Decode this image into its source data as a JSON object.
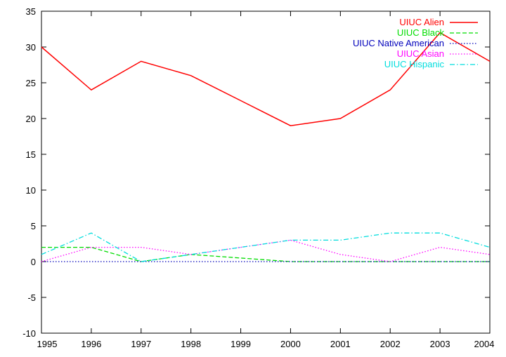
{
  "chart_data": {
    "type": "line",
    "xlim": [
      1995,
      2004
    ],
    "ylim": [
      -10,
      35
    ],
    "x_ticks": [
      1995,
      1996,
      1997,
      1998,
      1999,
      2000,
      2001,
      2002,
      2003,
      2004
    ],
    "y_ticks": [
      -10,
      -5,
      0,
      5,
      10,
      15,
      20,
      25,
      30,
      35
    ],
    "legend_position": "top-right",
    "grid": false,
    "x": [
      1995,
      1996,
      1997,
      1998,
      1999,
      2000,
      2001,
      2002,
      2003,
      2004
    ],
    "series": [
      {
        "name": "UIUC Alien",
        "color": "#ff0000",
        "dash": "solid",
        "values": [
          30,
          24,
          28,
          26,
          22.5,
          19,
          20,
          24,
          32,
          28
        ]
      },
      {
        "name": "UIUC Black",
        "color": "#00dd00",
        "dash": "dashed",
        "values": [
          2,
          2,
          0,
          1,
          0.5,
          0,
          0,
          0,
          0,
          0
        ]
      },
      {
        "name": "UIUC Native American",
        "color": "#0000bb",
        "dash": "dotted",
        "values": [
          0,
          0,
          0,
          0,
          0,
          0,
          0,
          0,
          0,
          0
        ]
      },
      {
        "name": "UIUC Asian",
        "color": "#ff00ff",
        "dash": "dotted",
        "values": [
          0,
          2,
          2,
          1,
          2,
          3,
          1,
          0,
          2,
          1
        ]
      },
      {
        "name": "UIUC Hispanic",
        "color": "#00dddd",
        "dash": "dashdot",
        "values": [
          1,
          4,
          0,
          1,
          2,
          3,
          3,
          4,
          4,
          2
        ]
      }
    ]
  }
}
